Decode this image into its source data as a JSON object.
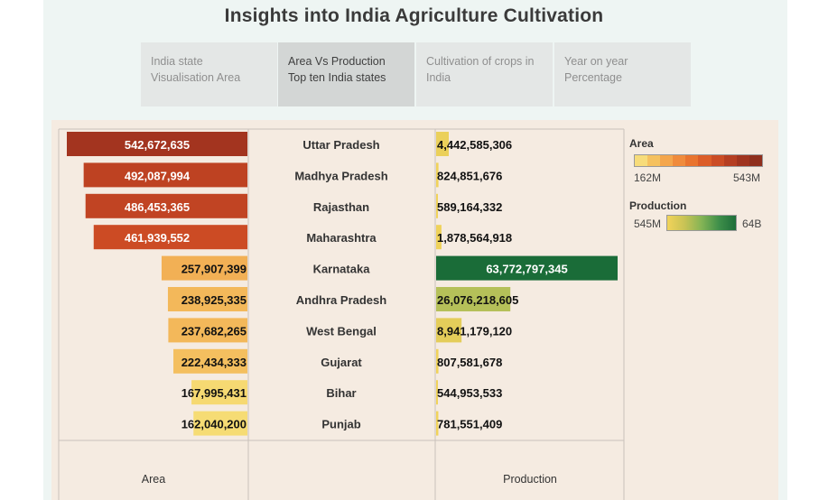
{
  "title": "Insights into India Agriculture Cultivation",
  "tabs": [
    {
      "line1": "India state",
      "line2": "Visualisation Area",
      "active": false
    },
    {
      "line1": "Area Vs Production",
      "line2": "Top ten India states",
      "active": true
    },
    {
      "line1": "Cultivation of crops in",
      "line2": "India",
      "active": false
    },
    {
      "line1": "Year on year",
      "line2": "Percentage",
      "active": false
    }
  ],
  "chart_data": {
    "type": "bar",
    "categories": [
      "Uttar Pradesh",
      "Madhya Pradesh",
      "Rajasthan",
      "Maharashtra",
      "Karnataka",
      "Andhra Pradesh",
      "West Bengal",
      "Gujarat",
      "Bihar",
      "Punjab"
    ],
    "series": [
      {
        "name": "Area",
        "values": [
          542672635,
          492087994,
          486453365,
          461939552,
          257907399,
          238925335,
          237682265,
          222434333,
          167995431,
          162040200
        ]
      },
      {
        "name": "Production",
        "values": [
          4442585306,
          824851676,
          589164332,
          1878564918,
          63772797345,
          26076218605,
          8941179120,
          807581678,
          544953533,
          781551409
        ]
      }
    ],
    "data_labels": {
      "area": [
        "542,672,635",
        "492,087,994",
        "486,453,365",
        "461,939,552",
        "257,907,399",
        "238,925,335",
        "237,682,265",
        "222,434,333",
        "167,995,431",
        "162,040,200"
      ],
      "production": [
        "4,442,585,306",
        "824,851,676",
        "589,164,332",
        "1,878,564,918",
        "63,772,797,345",
        "26,076,218,605",
        "8,941,179,120",
        "807,581,678",
        "544,953,533",
        "781,551,409"
      ]
    },
    "xlabel_left": "Area",
    "xlabel_right": "Production"
  },
  "legend": {
    "area": {
      "title": "Area",
      "min_label": "162M",
      "max_label": "543M",
      "colors": [
        "#f7dc7a",
        "#f5c15f",
        "#f4a64c",
        "#f08b3c",
        "#e9742f",
        "#dc5d28",
        "#cb4c25",
        "#b53e22",
        "#a0341f",
        "#8f2f1d"
      ]
    },
    "production": {
      "title": "Production",
      "min_label": "545M",
      "max_label": "64B"
    }
  }
}
